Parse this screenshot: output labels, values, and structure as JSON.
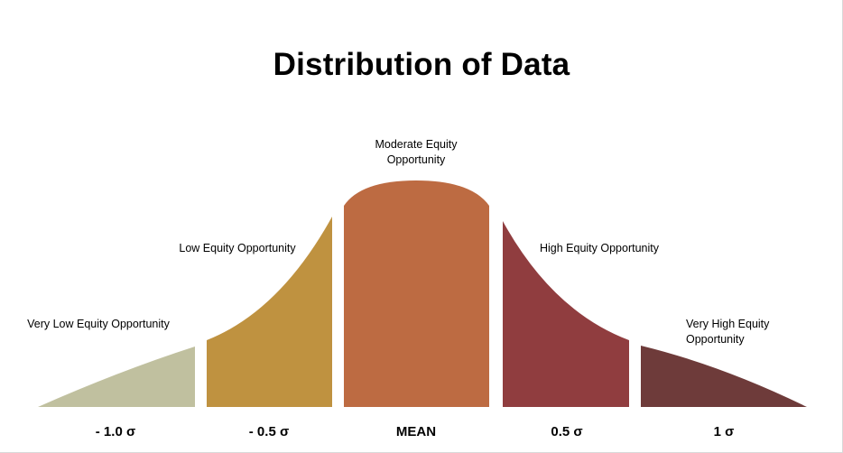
{
  "title": "Distribution of Data",
  "segments": [
    {
      "label": "Very Low Equity Opportunity",
      "color": "#c0c09f"
    },
    {
      "label": "Low Equity Opportunity",
      "color": "#bf9240"
    },
    {
      "label_line1": "Moderate Equity",
      "label_line2": "Opportunity",
      "color": "#bd6b42"
    },
    {
      "label": "High Equity Opportunity",
      "color": "#903d3f"
    },
    {
      "label_line1": "Very High Equity",
      "label_line2": "Opportunity",
      "color": "#6e3b3a"
    }
  ],
  "axis_labels": [
    "- 1.0 σ",
    "- 0.5 σ",
    "MEAN",
    "0.5 σ",
    "1 σ"
  ]
}
